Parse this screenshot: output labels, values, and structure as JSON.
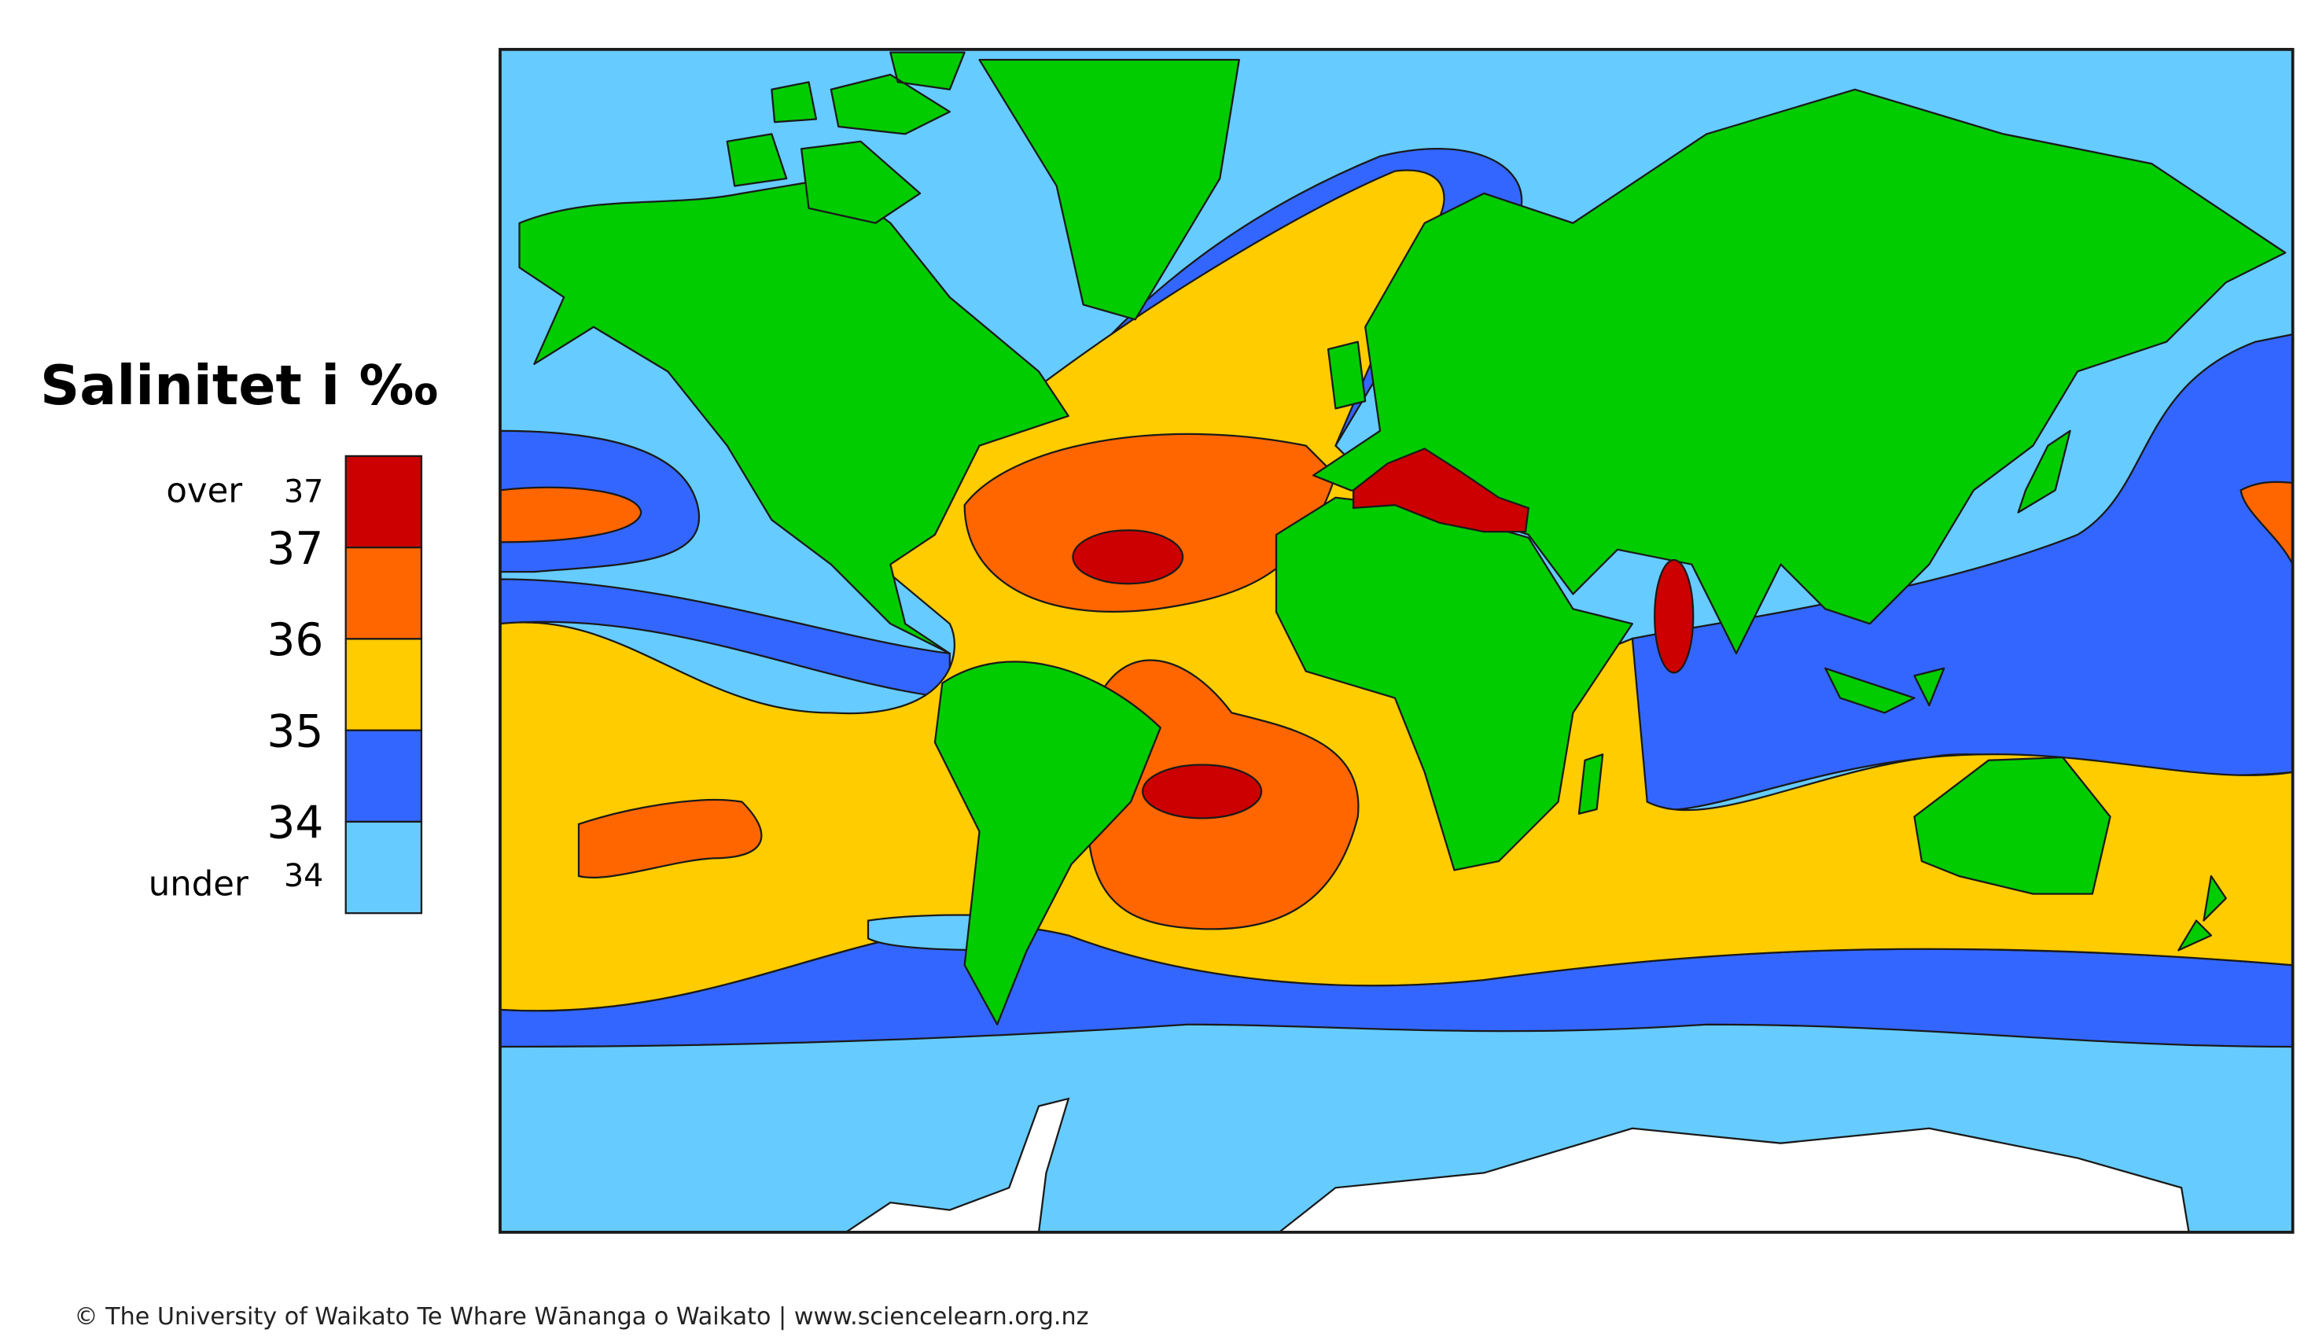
{
  "legend": {
    "title": "Salinitet i ‰",
    "top_label": {
      "prefix": "over",
      "value": "37"
    },
    "ticks": [
      "37",
      "36",
      "35",
      "34"
    ],
    "bottom_label": {
      "prefix": "under",
      "value": "34"
    },
    "colors": [
      "#cc0000",
      "#ff6600",
      "#ffcc00",
      "#3366ff",
      "#66ccff"
    ]
  },
  "footer": "© The University of Waikato Te Whare Wānanga o Waikato | www.sciencelearn.org.nz"
}
